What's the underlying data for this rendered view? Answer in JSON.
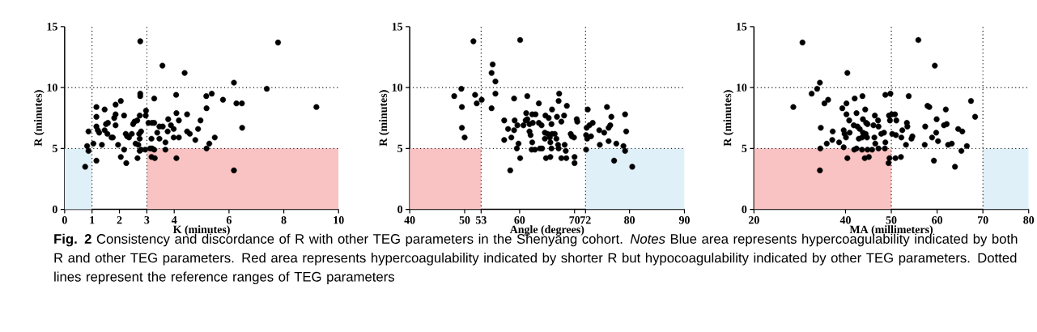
{
  "chart_data": [
    {
      "type": "scatter",
      "xlabel": "K (minutes)",
      "ylabel": "R (minutes)",
      "color": "#000000",
      "marker": "circle",
      "xlim": [
        0,
        10
      ],
      "ylim": [
        0,
        15
      ],
      "xticks": [
        0,
        1,
        2,
        3,
        4,
        6,
        8,
        10
      ],
      "yticks": [
        0,
        5,
        10,
        15
      ],
      "ref_lines": [
        {
          "axis": "x",
          "value": 1,
          "line_style": "dotted"
        },
        {
          "axis": "x",
          "value": 3,
          "line_style": "dotted"
        },
        {
          "axis": "y",
          "value": 5,
          "line_style": "dotted"
        },
        {
          "axis": "y",
          "value": 10,
          "line_style": "dotted"
        }
      ],
      "bands": [
        {
          "axis": "x",
          "from": 0,
          "to": 1,
          "color": "#dff0f9"
        },
        {
          "axis": "x",
          "from": 3,
          "to": 10,
          "color": "#f9c3c3"
        }
      ],
      "annotations": [
        "**Fig. 2**  Consistency and discordance of R with other TEG parameters in the Shenyang cohort. *Notes* Blue area represents hypercoagulability indicated by both R and other TEG parameters. Red area represents hypercoagulability indicated by shorter R but hypocoagulability indicated by other TEG parameters. Dotted lines represent the reference ranges of TEG parameters"
      ],
      "x": [
        2.76,
        7.79,
        3.57,
        4.38,
        6.18,
        7.38,
        2.76,
        2.76,
        3.27,
        4.07,
        2.05,
        1.86,
        5.17,
        5.37,
        5.78,
        6.27,
        6.47,
        9.19,
        1.16,
        1.46,
        1.16,
        1.81,
        1.86,
        2.17,
        0.87,
        1.16,
        1.21,
        1.26,
        1.46,
        1.51,
        1.58,
        1.56,
        1.71,
        1.76,
        1.86,
        2.23,
        2.28,
        2.35,
        2.45,
        2.5,
        2.55,
        2.65,
        2.74,
        2.79,
        2.72,
        2.74,
        2.59,
        2.69,
        2.79,
        2.74,
        2.97,
        2.96,
        3.06,
        3.19,
        3.27,
        3.17,
        3.19,
        3.27,
        3.12,
        3.17,
        3.29,
        3.38,
        3.46,
        3.58,
        3.46,
        3.68,
        3.68,
        3.78,
        3.76,
        3.88,
        3.98,
        4.08,
        4.17,
        3.98,
        4.17,
        4.08,
        4.47,
        4.47,
        4.57,
        4.77,
        4.87,
        4.96,
        5.18,
        5.28,
        5.18,
        5.48,
        6.18,
        6.48,
        0.82,
        0.87,
        1.05,
        1.16,
        0.75,
        1.36,
        1.95,
        2.05,
        2.25,
        2.17,
        2.66,
        2.94
      ],
      "values": [
        13.8,
        13.7,
        11.8,
        11.2,
        10.4,
        9.9,
        9.5,
        9.3,
        9.1,
        9.4,
        8.9,
        8.6,
        9.3,
        9.5,
        9.0,
        8.7,
        8.7,
        8.4,
        8.4,
        8.2,
        7.6,
        7.5,
        7.8,
        7.7,
        6.4,
        6.8,
        6.5,
        6.3,
        6.5,
        7.0,
        7.1,
        6.2,
        5.9,
        5.9,
        6.9,
        6.2,
        6.0,
        5.9,
        6.2,
        7.0,
        7.2,
        7.3,
        7.7,
        6.4,
        6.2,
        5.8,
        5.4,
        5.3,
        4.9,
        4.8,
        8.1,
        7.7,
        7.1,
        7.1,
        7.1,
        5.8,
        5.0,
        4.9,
        5.0,
        4.3,
        4.2,
        6.3,
        6.8,
        6.8,
        5.8,
        5.5,
        4.9,
        7.4,
        6.4,
        6.9,
        6.6,
        7.9,
        7.3,
        5.9,
        5.9,
        4.2,
        7.8,
        6.4,
        6.2,
        5.7,
        6.6,
        7.3,
        8.3,
        5.4,
        5.0,
        5.9,
        3.2,
        6.7,
        5.2,
        4.8,
        5.4,
        4.0,
        3.5,
        5.3,
        5.3,
        4.3,
        3.8,
        4.9,
        4.2,
        4.9
      ]
    },
    {
      "type": "scatter",
      "xlabel": "Angle (degrees)",
      "ylabel": "R (minutes)",
      "color": "#000000",
      "marker": "circle",
      "xlim": [
        40,
        90
      ],
      "ylim": [
        0,
        15
      ],
      "xticks": [
        40,
        50,
        53,
        60,
        70,
        72,
        80,
        90
      ],
      "yticks": [
        0,
        5,
        10,
        15
      ],
      "ref_lines": [
        {
          "axis": "x",
          "value": 53,
          "line_style": "dotted"
        },
        {
          "axis": "x",
          "value": 72,
          "line_style": "dotted"
        },
        {
          "axis": "y",
          "value": 5,
          "line_style": "dotted"
        },
        {
          "axis": "y",
          "value": 10,
          "line_style": "dotted"
        }
      ],
      "bands": [
        {
          "axis": "x",
          "from": 40,
          "to": 53,
          "color": "#f9c3c3"
        },
        {
          "axis": "x",
          "from": 72,
          "to": 90,
          "color": "#dff0f9"
        }
      ],
      "x": [
        51.6,
        60.1,
        49.4,
        48.1,
        51.9,
        52.2,
        53.1,
        49.5,
        49.5,
        50.0,
        55.1,
        54.9,
        55.6,
        55.6,
        54.9,
        59.0,
        61.4,
        63.5,
        67.2,
        67.1,
        68.6,
        57.2,
        59.1,
        57.9,
        59.0,
        57.2,
        58.5,
        59.6,
        59.8,
        59.5,
        60.1,
        58.3,
        60.7,
        61.1,
        61.4,
        61.2,
        61.8,
        62.3,
        62.9,
        62.4,
        61.8,
        62.0,
        62.3,
        62.2,
        62.8,
        63.5,
        64.0,
        63.7,
        64.1,
        64.7,
        65.3,
        65.9,
        65.8,
        64.6,
        65.1,
        65.9,
        66.4,
        64.6,
        65.5,
        66.7,
        65.6,
        65.8,
        64.8,
        65.6,
        66.8,
        68.1,
        67.6,
        67.0,
        67.1,
        68.2,
        68.4,
        67.6,
        68.5,
        69.3,
        69.5,
        69.9,
        70.0,
        70.0,
        70.4,
        70.5,
        72.4,
        72.2,
        72.7,
        73.3,
        72.1,
        72.3,
        73.0,
        72.1,
        74.5,
        75.4,
        74.6,
        75.9,
        76.7,
        76.2,
        76.5,
        76.2,
        77.2,
        77.6,
        78.9,
        79.2,
        79.4,
        79.2,
        80.5
      ],
      "values": [
        13.8,
        13.9,
        9.9,
        9.3,
        9.4,
        8.7,
        9.0,
        8.4,
        6.7,
        5.9,
        11.9,
        11.2,
        10.5,
        9.5,
        8.3,
        9.1,
        9.3,
        8.7,
        9.5,
        8.9,
        8.5,
        7.3,
        7.3,
        6.6,
        6.5,
        5.7,
        5.9,
        6.9,
        5.4,
        5.0,
        4.2,
        3.2,
        6.9,
        7.3,
        7.4,
        7.9,
        7.0,
        7.8,
        7.8,
        7.1,
        6.4,
        6.1,
        5.5,
        4.9,
        4.9,
        7.1,
        6.9,
        5.0,
        5.0,
        7.7,
        7.5,
        8.2,
        7.0,
        6.3,
        6.2,
        6.2,
        6.2,
        5.8,
        5.9,
        5.8,
        5.5,
        5.0,
        4.2,
        4.3,
        7.6,
        7.7,
        7.2,
        5.3,
        5.0,
        5.3,
        4.8,
        4.2,
        4.2,
        6.2,
        6.0,
        5.9,
        4.3,
        3.8,
        7.4,
        7.2,
        8.2,
        6.7,
        6.9,
        7.1,
        6.1,
        5.8,
        6.0,
        4.9,
        6.5,
        6.3,
        5.3,
        8.4,
        7.6,
        6.7,
        6.9,
        5.6,
        4.0,
        5.4,
        5.2,
        7.8,
        6.4,
        4.8,
        3.5
      ]
    },
    {
      "type": "scatter",
      "xlabel": "MA (millimeters)",
      "ylabel": "R (minutes)",
      "color": "#000000",
      "marker": "circle",
      "xlim": [
        20,
        80
      ],
      "ylim": [
        0,
        15
      ],
      "xticks": [
        20,
        40,
        50,
        60,
        70,
        80
      ],
      "yticks": [
        0,
        5,
        10,
        15
      ],
      "ref_lines": [
        {
          "axis": "x",
          "value": 50,
          "line_style": "dotted"
        },
        {
          "axis": "x",
          "value": 70,
          "line_style": "dotted"
        },
        {
          "axis": "y",
          "value": 5,
          "line_style": "dotted"
        },
        {
          "axis": "y",
          "value": 10,
          "line_style": "dotted"
        }
      ],
      "bands": [
        {
          "axis": "x",
          "from": 20,
          "to": 50,
          "color": "#f9c3c3"
        },
        {
          "axis": "x",
          "from": 70,
          "to": 80,
          "color": "#dff0f9"
        }
      ],
      "x": [
        30.6,
        55.9,
        59.5,
        40.4,
        28.6,
        32.6,
        33.8,
        34.4,
        35.4,
        36.2,
        34.6,
        34.5,
        34.4,
        35.9,
        37.1,
        37.2,
        38.6,
        39.3,
        40.2,
        40.2,
        39.6,
        39.8,
        40.1,
        39.6,
        40.4,
        40.8,
        40.9,
        42.0,
        43.7,
        42.4,
        44.3,
        41.8,
        42.6,
        43.1,
        42.9,
        43.8,
        44.5,
        44.8,
        43.8,
        44.4,
        43.6,
        44.7,
        41.9,
        42.4,
        43.6,
        44.2,
        45.1,
        44.8,
        45.8,
        46.4,
        46.1,
        46.3,
        46.5,
        47.1,
        47.2,
        47.2,
        47.8,
        48.4,
        48.7,
        48.6,
        48.7,
        49.8,
        49.5,
        49.7,
        49.4,
        49.6,
        50.1,
        50.8,
        51.1,
        50.2,
        51.0,
        50.9,
        52.1,
        52.2,
        52.4,
        53.4,
        53.5,
        53.2,
        53.8,
        54.4,
        54.6,
        57.4,
        57.3,
        57.9,
        58.3,
        58.9,
        59.3,
        59.9,
        59.8,
        60.2,
        61.9,
        61.5,
        62.1,
        62.4,
        63.2,
        63.9,
        64.6,
        65.3,
        65.5,
        66.5,
        67.4,
        68.3
      ],
      "values": [
        13.7,
        13.9,
        11.8,
        11.2,
        8.4,
        9.5,
        9.9,
        10.4,
        8.7,
        9.0,
        6.7,
        5.0,
        3.2,
        5.4,
        5.7,
        6.4,
        5.5,
        8.3,
        8.7,
        7.8,
        6.5,
        6.2,
        5.9,
        5.1,
        4.2,
        7.3,
        6.3,
        9.1,
        9.3,
        7.9,
        8.2,
        6.9,
        6.8,
        6.6,
        5.8,
        7.4,
        7.1,
        7.0,
        6.3,
        6.2,
        5.9,
        5.9,
        4.9,
        5.0,
        4.9,
        4.2,
        4.3,
        4.9,
        4.9,
        7.7,
        6.9,
        5.9,
        5.4,
        7.3,
        6.8,
        5.0,
        6.2,
        6.3,
        5.5,
        5.0,
        9.4,
        9.5,
        7.7,
        7.3,
        3.8,
        4.2,
        7.8,
        7.8,
        7.3,
        6.2,
        6.1,
        4.2,
        4.3,
        5.9,
        6.5,
        7.1,
        6.8,
        5.3,
        9.3,
        5.8,
        6.0,
        6.8,
        5.3,
        8.5,
        8.4,
        5.9,
        4.0,
        7.4,
        6.3,
        5.6,
        8.2,
        6.9,
        7.0,
        5.3,
        5.4,
        3.5,
        6.6,
        4.8,
        6.4,
        5.2,
        8.9,
        7.6
      ]
    }
  ]
}
